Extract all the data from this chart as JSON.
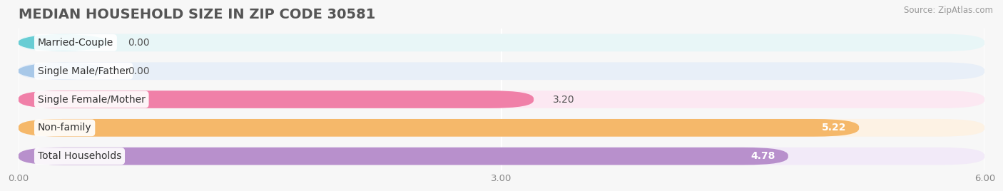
{
  "title": "MEDIAN HOUSEHOLD SIZE IN ZIP CODE 30581",
  "source": "Source: ZipAtlas.com",
  "categories": [
    "Married-Couple",
    "Single Male/Father",
    "Single Female/Mother",
    "Non-family",
    "Total Households"
  ],
  "values": [
    0.0,
    0.0,
    3.2,
    5.22,
    4.78
  ],
  "bar_colors": [
    "#68cdd4",
    "#a8c8e8",
    "#f080a8",
    "#f5b86a",
    "#b890cc"
  ],
  "bg_colors": [
    "#e8f6f7",
    "#e8eff8",
    "#fce8f2",
    "#fdf2e4",
    "#f2eaf8"
  ],
  "xlim": [
    0,
    6.0
  ],
  "xticks": [
    0.0,
    3.0,
    6.0
  ],
  "xtick_labels": [
    "0.00",
    "3.00",
    "6.00"
  ],
  "value_labels": [
    "0.00",
    "0.00",
    "3.20",
    "5.22",
    "4.78"
  ],
  "value_inside": [
    false,
    false,
    false,
    true,
    true
  ],
  "bar_height": 0.62,
  "background_color": "#f7f7f7",
  "title_fontsize": 14,
  "label_fontsize": 10,
  "value_fontsize": 10
}
